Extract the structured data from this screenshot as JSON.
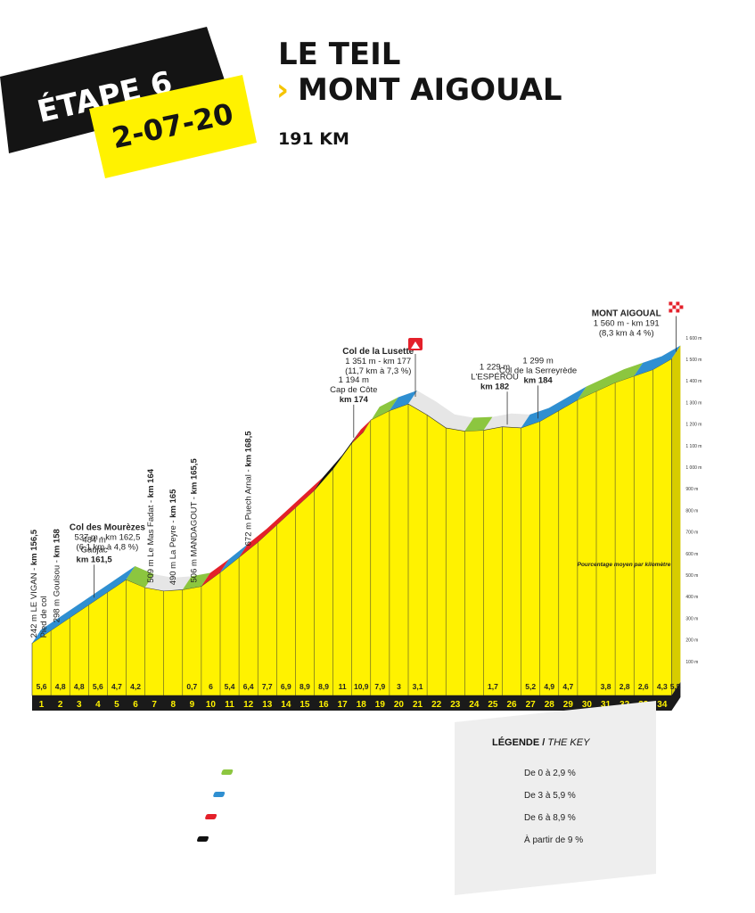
{
  "header": {
    "stage_label": "ÉTAPE 6",
    "date": "2-07-20",
    "start": "LE TEIL",
    "arrow": "›",
    "finish": "MONT AIGOUAL",
    "distance": "191 KM"
  },
  "legend": {
    "title_bold": "LÉGENDE /",
    "title_italic": " THE KEY",
    "items": [
      {
        "label": "De 0 à 2,9 %",
        "color": "#8cc63f"
      },
      {
        "label": "De 3 à 5,9 %",
        "color": "#2f8fd1"
      },
      {
        "label": "De 6 à 8,9 %",
        "color": "#e4202a"
      },
      {
        "label": "À partir de 9 %",
        "color": "#111111"
      }
    ]
  },
  "chart_data": {
    "type": "area",
    "title": "",
    "xlabel": "",
    "ylabel": "",
    "fill_color": "#fff200",
    "colors": {
      "green": "#8cc63f",
      "blue": "#2f8fd1",
      "red": "#e4202a",
      "black": "#111111",
      "base": "#1a1a1a"
    },
    "x_ticks": [
      "1",
      "2",
      "3",
      "4",
      "5",
      "6",
      "7",
      "8",
      "9",
      "10",
      "11",
      "12",
      "13",
      "14",
      "15",
      "16",
      "17",
      "18",
      "19",
      "20",
      "21",
      "22",
      "23",
      "24",
      "25",
      "26",
      "27",
      "28",
      "29",
      "30",
      "31",
      "32",
      "33",
      "34"
    ],
    "y_ticks": [
      "100 m",
      "200 m",
      "300 m",
      "400 m",
      "500 m",
      "600 m",
      "700 m",
      "800 m",
      "900 m",
      "1 000 m",
      "1 100 m",
      "1 200 m",
      "1 300 m",
      "1 400 m",
      "1 500 m",
      "1 600 m"
    ],
    "y_note": "Pourcentage moyen par kilomètre",
    "km_gradients": [
      "5,6",
      "4,8",
      "4,8",
      "5,6",
      "4,7",
      "4,2",
      "",
      "",
      "0,7",
      "6",
      "5,4",
      "6,4",
      "7,7",
      "6,9",
      "8,9",
      "8,9",
      "11",
      "10,9",
      "7,9",
      "3",
      "3,1",
      "",
      "",
      "",
      "1,7",
      "",
      "5,2",
      "4,9",
      "4,7",
      "",
      "3,8",
      "2,8",
      "2,6",
      "4,3",
      "5,5"
    ],
    "profile": [
      {
        "x": 0,
        "y": 242
      },
      {
        "x": 5,
        "y": 537
      },
      {
        "x": 6,
        "y": 500
      },
      {
        "x": 7,
        "y": 484
      },
      {
        "x": 8,
        "y": 490
      },
      {
        "x": 9,
        "y": 506
      },
      {
        "x": 10,
        "y": 570
      },
      {
        "x": 11,
        "y": 640
      },
      {
        "x": 12,
        "y": 710
      },
      {
        "x": 13,
        "y": 790
      },
      {
        "x": 14,
        "y": 870
      },
      {
        "x": 15,
        "y": 950
      },
      {
        "x": 16,
        "y": 1050
      },
      {
        "x": 17,
        "y": 1170
      },
      {
        "x": 17.6,
        "y": 1220
      },
      {
        "x": 18,
        "y": 1276
      },
      {
        "x": 19,
        "y": 1320
      },
      {
        "x": 20,
        "y": 1351
      },
      {
        "x": 21,
        "y": 1300
      },
      {
        "x": 22,
        "y": 1240
      },
      {
        "x": 23,
        "y": 1225
      },
      {
        "x": 24,
        "y": 1229
      },
      {
        "x": 25,
        "y": 1245
      },
      {
        "x": 26,
        "y": 1240
      },
      {
        "x": 27,
        "y": 1270
      },
      {
        "x": 28,
        "y": 1320
      },
      {
        "x": 29,
        "y": 1370
      },
      {
        "x": 30,
        "y": 1410
      },
      {
        "x": 31,
        "y": 1450
      },
      {
        "x": 32,
        "y": 1480
      },
      {
        "x": 33,
        "y": 1510
      },
      {
        "x": 34,
        "y": 1560
      }
    ],
    "segments": [
      {
        "x0": 0,
        "x1": 5,
        "grade": "blue"
      },
      {
        "x0": 5,
        "x1": 6,
        "grade": "green"
      },
      {
        "x0": 8,
        "x1": 9,
        "grade": "green"
      },
      {
        "x0": 9,
        "x1": 10,
        "grade": "red"
      },
      {
        "x0": 10,
        "x1": 11,
        "grade": "blue"
      },
      {
        "x0": 11,
        "x1": 15,
        "grade": "red"
      },
      {
        "x0": 15,
        "x1": 17,
        "grade": "black"
      },
      {
        "x0": 17,
        "x1": 17.6,
        "grade": "red"
      },
      {
        "x0": 17.6,
        "x1": 19,
        "grade": "green"
      },
      {
        "x0": 19,
        "x1": 20,
        "grade": "blue"
      },
      {
        "x0": 23,
        "x1": 24,
        "grade": "green"
      },
      {
        "x0": 26,
        "x1": 29,
        "grade": "blue"
      },
      {
        "x0": 29,
        "x1": 32,
        "grade": "green"
      },
      {
        "x0": 32,
        "x1": 34,
        "grade": "blue"
      }
    ],
    "rot_annotations": [
      {
        "x": 0,
        "lines": [
          "242 m LE VIGAN - ",
          "km 156,5",
          "Pied de col"
        ]
      },
      {
        "x": 1.2,
        "lines": [
          "298 m Goulsou - ",
          "km 158"
        ]
      },
      {
        "x": 6.2,
        "lines": [
          "509 m Le Mas Fadat - ",
          "km 164"
        ]
      },
      {
        "x": 7.4,
        "lines": [
          "490 m La Peyre - ",
          "km 165"
        ]
      },
      {
        "x": 8.5,
        "lines": [
          "506 m MANDAGOUT - ",
          "km 165,5"
        ]
      },
      {
        "x": 11.4,
        "lines": [
          "672 m Puech Arnal - ",
          "km 168,5"
        ]
      }
    ],
    "annotations": [
      {
        "x": 3.3,
        "anchor": "middle",
        "lines": [
          {
            "t": "484 m",
            "b": false
          },
          {
            "t": "Gaujac",
            "b": false
          },
          {
            "t": "km 161,5",
            "b": true
          }
        ]
      },
      {
        "x": 17.1,
        "anchor": "middle",
        "lines": [
          {
            "t": "1 194 m",
            "b": false
          },
          {
            "t": "Cap de Côte",
            "b": false
          },
          {
            "t": "km 174",
            "b": true
          }
        ]
      },
      {
        "x": 24.6,
        "anchor": "middle",
        "lines": [
          {
            "t": "1 229 m",
            "b": false
          },
          {
            "t": "L'ESPÉROU",
            "b": false
          },
          {
            "t": "km 182",
            "b": true
          }
        ]
      },
      {
        "x": 26.9,
        "anchor": "middle",
        "lines": [
          {
            "t": "1 299 m",
            "b": false
          },
          {
            "t": "Col de la Serreyrède",
            "b": false
          },
          {
            "t": "km 184",
            "b": true
          }
        ]
      }
    ],
    "climbs": [
      {
        "x": 4,
        "lines": [
          "Col des Mourèzes",
          "537 m - km 162,5",
          "(6,1 km à 4,8 %)"
        ]
      },
      {
        "x": 18.4,
        "lines": [
          "Col de la Lusette",
          "1 351 m - km 177",
          "(11,7 km à 7,3 %)"
        ]
      },
      {
        "x": 31.6,
        "lines": [
          "MONT AIGOUAL",
          "1 560 m -  km 191",
          "(8,3 km à 4 %)"
        ]
      }
    ]
  }
}
